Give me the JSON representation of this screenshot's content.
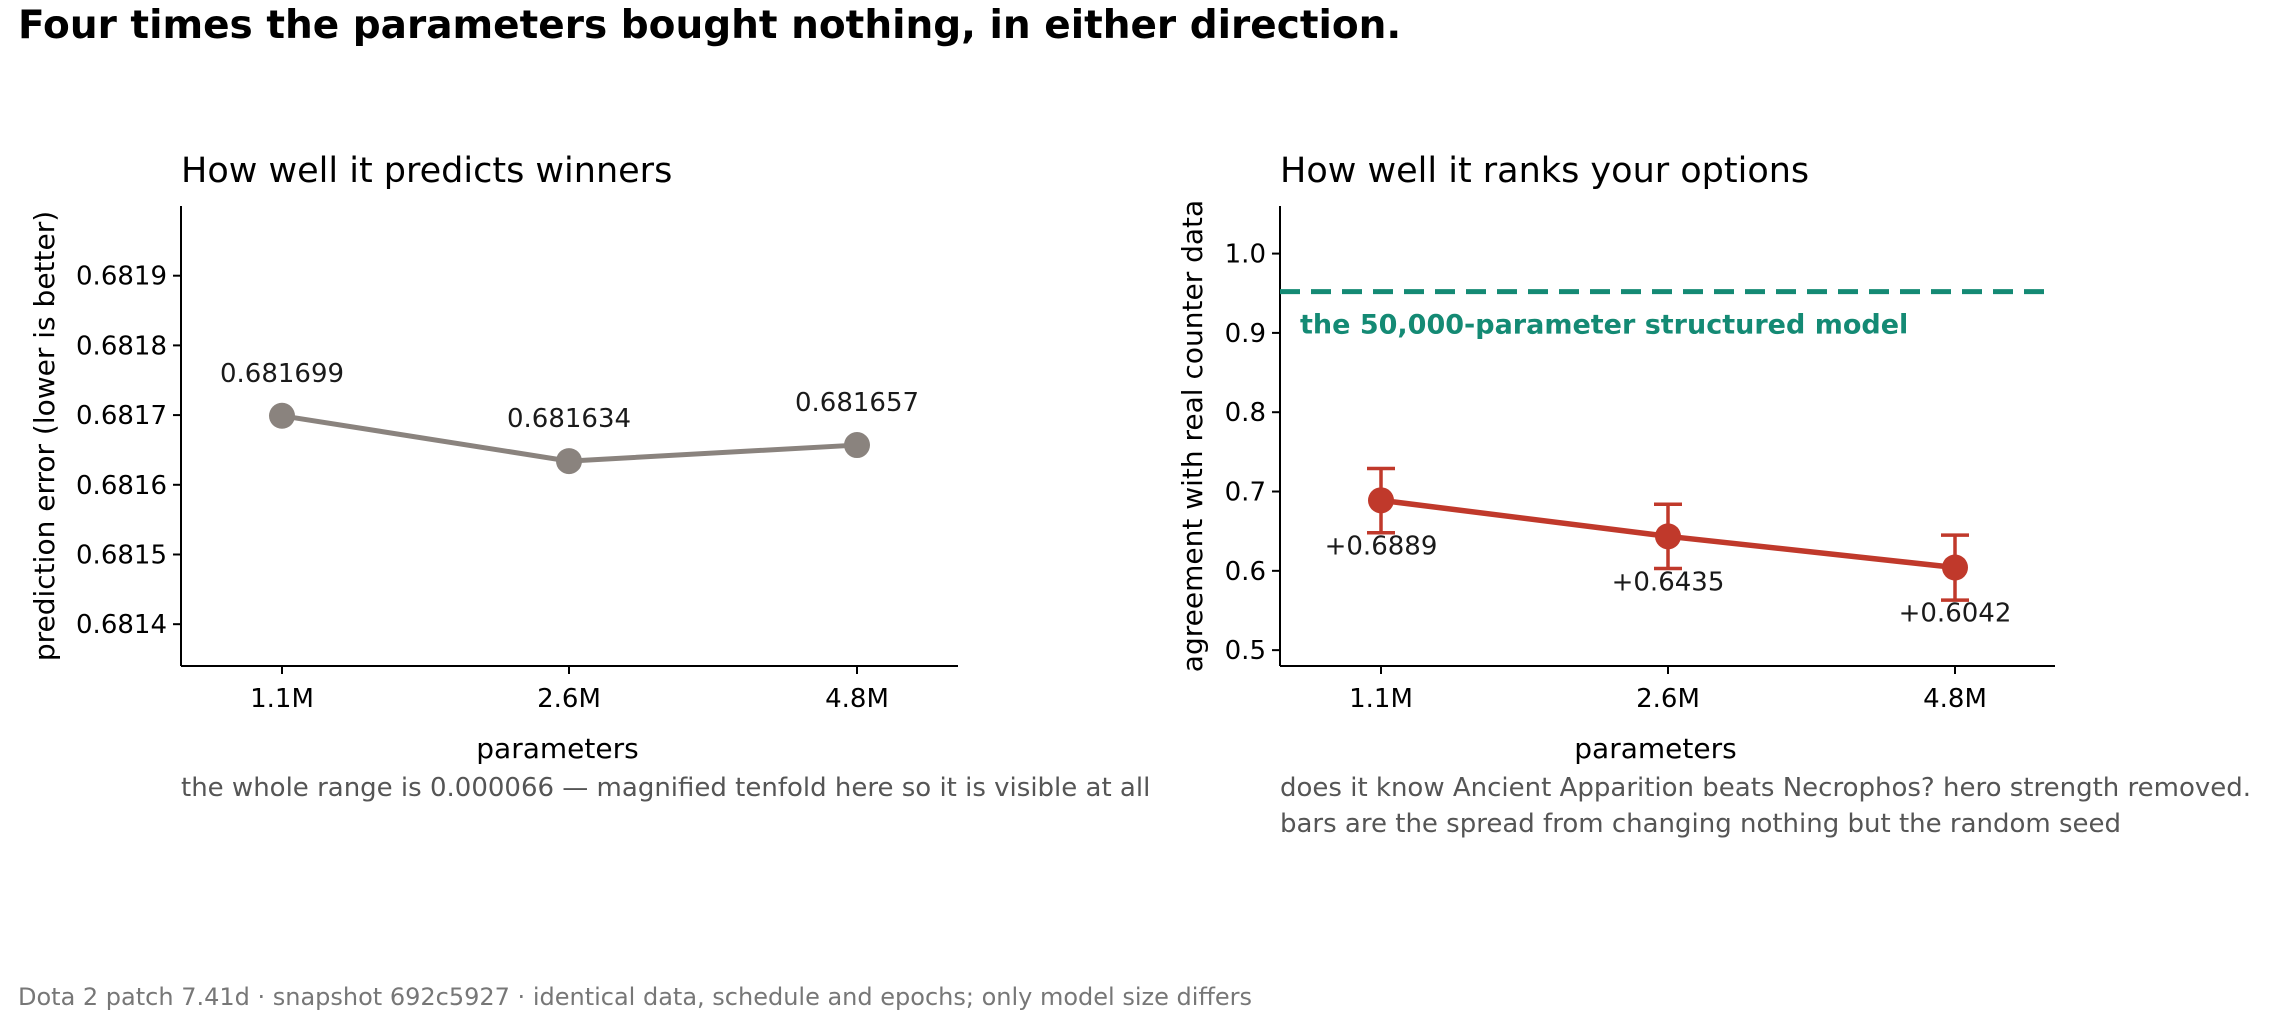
{
  "title": "Four times the parameters bought nothing, in either direction.",
  "footer": "Dota 2 patch 7.41d · snapshot 692c5927 · identical data, schedule and epochs; only model size differs",
  "colors": {
    "left_series": "#8a837e",
    "right_series": "#c0392b",
    "reference": "#148a74"
  },
  "chart_data": [
    {
      "type": "line",
      "title": "How well it predicts winners",
      "xlabel": "parameters",
      "ylabel": "prediction error  (lower is better)",
      "categories": [
        "1.1M",
        "2.6M",
        "4.8M"
      ],
      "values": [
        0.681699,
        0.681634,
        0.681657
      ],
      "data_labels": [
        "0.681699",
        "0.681634",
        "0.681657"
      ],
      "yticks": [
        0.6814,
        0.6815,
        0.6816,
        0.6817,
        0.6818,
        0.6819
      ],
      "ytick_labels": [
        "0.6814",
        "0.6815",
        "0.6816",
        "0.6817",
        "0.6818",
        "0.6819"
      ],
      "ylim": [
        0.68134,
        0.682
      ],
      "caption": [
        "the whole range is 0.000066 — magnified tenfold here so it is visible at all"
      ],
      "grid": false
    },
    {
      "type": "line",
      "title": "How well it ranks your options",
      "xlabel": "parameters",
      "ylabel": "agreement with real counter data",
      "categories": [
        "1.1M",
        "2.6M",
        "4.8M"
      ],
      "values": [
        0.6889,
        0.6435,
        0.6042
      ],
      "error_low": [
        0.648,
        0.603,
        0.563
      ],
      "error_high": [
        0.729,
        0.684,
        0.645
      ],
      "data_labels": [
        "+0.6889",
        "+0.6435",
        "+0.6042"
      ],
      "yticks": [
        0.5,
        0.6,
        0.7,
        0.8,
        0.9,
        1.0
      ],
      "ytick_labels": [
        "0.5",
        "0.6",
        "0.7",
        "0.8",
        "0.9",
        "1.0"
      ],
      "ylim": [
        0.48,
        1.06
      ],
      "reference": {
        "value": 0.952,
        "label": "the 50,000-parameter structured model"
      },
      "caption": [
        "does it know Ancient Apparition beats Necrophos? hero strength removed.",
        "bars are the spread from changing nothing but the random seed"
      ],
      "grid": false
    }
  ]
}
